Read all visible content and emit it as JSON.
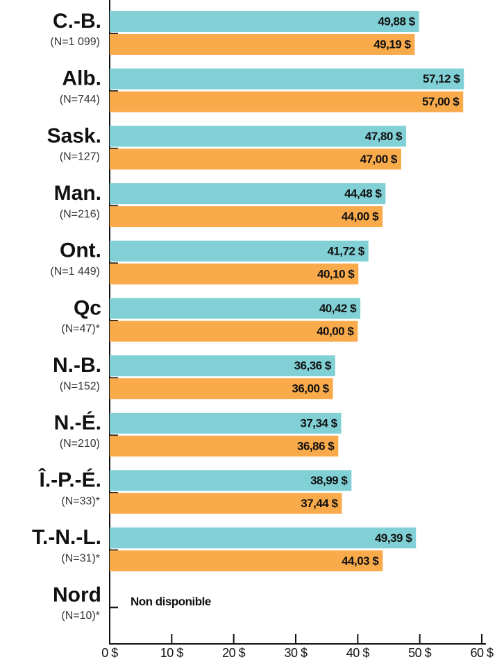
{
  "chart_data": {
    "type": "barh",
    "categories": [
      "C.-B.",
      "Alb.",
      "Sask.",
      "Man.",
      "Ont.",
      "Qc",
      "N.-B.",
      "N.-É.",
      "Î.-P.-É.",
      "T.-N.-L.",
      "Nord"
    ],
    "sample_sizes": [
      "(N=1 099)",
      "(N=744)",
      "(N=127)",
      "(N=216)",
      "(N=1 449)",
      "(N=47)*",
      "(N=152)",
      "(N=210)",
      "(N=33)*",
      "(N=31)*",
      "(N=10)*"
    ],
    "series": [
      {
        "color": "#80d0d6",
        "values": [
          49.88,
          57.12,
          47.8,
          44.48,
          41.72,
          40.42,
          36.36,
          37.34,
          38.99,
          49.39,
          null
        ],
        "value_labels": [
          "49,88 $",
          "57,12 $",
          "47,80 $",
          "44,48 $",
          "41,72 $",
          "40,42 $",
          "36,36 $",
          "37,34 $",
          "38,99 $",
          "49,39 $",
          null
        ]
      },
      {
        "color": "#f9aa4b",
        "values": [
          49.19,
          57.0,
          47.0,
          44.0,
          40.1,
          40.0,
          36.0,
          36.86,
          37.44,
          44.03,
          null
        ],
        "value_labels": [
          "49,19 $",
          "57,00 $",
          "47,00 $",
          "44,00 $",
          "40,10 $",
          "40,00 $",
          "36,00 $",
          "36,86 $",
          "37,44 $",
          "44,03 $",
          null
        ]
      }
    ],
    "annotation": "Non disponible",
    "xlim": [
      0,
      60
    ],
    "xticks": [
      {
        "value": 0,
        "label": "0 $"
      },
      {
        "value": 10,
        "label": "10 $"
      },
      {
        "value": 20,
        "label": "20 $"
      },
      {
        "value": 30,
        "label": "30 $"
      },
      {
        "value": 40,
        "label": "40 $"
      },
      {
        "value": 50,
        "label": "50 $"
      },
      {
        "value": 60,
        "label": "60 $"
      }
    ]
  }
}
